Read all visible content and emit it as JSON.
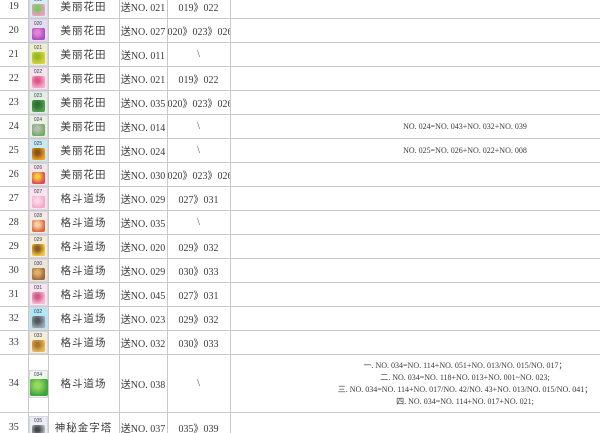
{
  "table": {
    "name": "pet-evolution-guide-table",
    "border_color": "#c9c9c9",
    "text_color": "#3a3a3a",
    "highlight_icon_bg": "#aee8f6",
    "rows": [
      {
        "num": "19",
        "icon": {
          "label": "019",
          "bg": "#d8ecf4",
          "c1": "#f29ec2",
          "c2": "#7cc763",
          "big": false
        },
        "area": "美丽花田",
        "send": "送NO. 021",
        "evolve": "019》022",
        "notes": []
      },
      {
        "num": "20",
        "icon": {
          "label": "020",
          "bg": "#e6def0",
          "c1": "#ab4cc9",
          "c2": "#e287d4",
          "big": false
        },
        "area": "美丽花田",
        "send": "送NO. 027",
        "evolve": "020》023》026",
        "notes": []
      },
      {
        "num": "21",
        "icon": {
          "label": "021",
          "bg": "#eef0cc",
          "c1": "#d6d23b",
          "c2": "#93bb27",
          "big": false
        },
        "area": "美丽花田",
        "send": "送NO. 011",
        "evolve": "\\",
        "notes": []
      },
      {
        "num": "22",
        "icon": {
          "label": "022",
          "bg": "#f8e2ee",
          "c1": "#f7a6ca",
          "c2": "#de5784",
          "big": false
        },
        "area": "美丽花田",
        "send": "送NO. 021",
        "evolve": "019》022",
        "notes": []
      },
      {
        "num": "23",
        "icon": {
          "label": "023",
          "bg": "#e2f0e0",
          "c1": "#53a053",
          "c2": "#2d6f2d",
          "big": false
        },
        "area": "美丽花田",
        "send": "送NO. 035",
        "evolve": "020》023》026",
        "notes": []
      },
      {
        "num": "24",
        "icon": {
          "label": "024",
          "bg": "#e9f1e3",
          "c1": "#6fae5e",
          "c2": "#b9bcb9",
          "big": false
        },
        "area": "美丽花田",
        "send": "送NO. 014",
        "evolve": "\\",
        "notes": [
          "NO. 024=NO. 043+NO. 032+NO. 039"
        ]
      },
      {
        "num": "25",
        "icon": {
          "label": "025",
          "bg": "#c6ebf3",
          "c1": "#f19a28",
          "c2": "#87540f",
          "big": false
        },
        "area": "美丽花田",
        "send": "送NO. 024",
        "evolve": "\\",
        "notes": [
          "NO. 025=NO. 026+NO. 022+NO. 008"
        ]
      },
      {
        "num": "26",
        "icon": {
          "label": "026",
          "bg": "#f4e6e2",
          "c1": "#e0485a",
          "c2": "#f2cf35",
          "big": false
        },
        "area": "美丽花田",
        "send": "送NO. 030",
        "evolve": "020》023》026",
        "notes": []
      },
      {
        "num": "27",
        "icon": {
          "label": "027",
          "bg": "#fae3ef",
          "c1": "#f5a9c9",
          "c2": "#fdd7e7",
          "big": false
        },
        "area": "格斗道场",
        "send": "送NO. 029",
        "evolve": "027》031",
        "notes": []
      },
      {
        "num": "28",
        "icon": {
          "label": "028",
          "bg": "#f5e9e1",
          "c1": "#de6a35",
          "c2": "#f7d0ad",
          "big": false
        },
        "area": "格斗道场",
        "send": "送NO. 035",
        "evolve": "\\",
        "notes": []
      },
      {
        "num": "29",
        "icon": {
          "label": "029",
          "bg": "#f5eed5",
          "c1": "#f1c443",
          "c2": "#8a5a1f",
          "big": false
        },
        "area": "格斗道场",
        "send": "送NO. 020",
        "evolve": "029》032",
        "notes": []
      },
      {
        "num": "30",
        "icon": {
          "label": "030",
          "bg": "#eee5d9",
          "c1": "#9f6a39",
          "c2": "#dfb06e",
          "big": false
        },
        "area": "格斗道场",
        "send": "送NO. 029",
        "evolve": "030》033",
        "notes": []
      },
      {
        "num": "31",
        "icon": {
          "label": "031",
          "bg": "#f9e6f0",
          "c1": "#f7b7d3",
          "c2": "#cf5a89",
          "big": false
        },
        "area": "格斗道场",
        "send": "送NO. 045",
        "evolve": "027》031",
        "notes": []
      },
      {
        "num": "32",
        "icon": {
          "label": "032",
          "bg": "#aee8f6",
          "c1": "#9aa4ab",
          "c2": "#4f575e",
          "big": false
        },
        "area": "格斗道场",
        "send": "送NO. 023",
        "evolve": "029》032",
        "notes": []
      },
      {
        "num": "33",
        "icon": {
          "label": "033",
          "bg": "#f5eed7",
          "c1": "#e7b75b",
          "c2": "#a9752c",
          "big": false
        },
        "area": "格斗道场",
        "send": "送NO. 032",
        "evolve": "030》033",
        "notes": []
      },
      {
        "num": "34",
        "icon": {
          "label": "034",
          "bg": "#eff5e7",
          "c1": "#3ea43e",
          "c2": "#95d95c",
          "big": true
        },
        "area": "格斗道场",
        "send": "送NO. 038",
        "evolve": "\\",
        "notes": [
          "一. NO. 034=NO. 114+NO. 051+NO. 013/NO. 015/NO. 017；",
          "二. NO. 034=NO. 118+NO. 013+NO. 001~NO. 023;",
          "三. NO. 034=NO. 114+NO. 017/NO. 42/NO. 43+NO. 013/NO. 015/NO. 041；",
          "四. NO. 034=NO. 114+NO. 017+NO. 021;"
        ]
      },
      {
        "num": "35",
        "icon": {
          "label": "035",
          "bg": "#ebeef1",
          "c1": "#b6bac0",
          "c2": "#43474c",
          "big": false
        },
        "area": "神秘金字塔",
        "send": "送NO. 037",
        "evolve": "035》039",
        "notes": []
      }
    ]
  }
}
